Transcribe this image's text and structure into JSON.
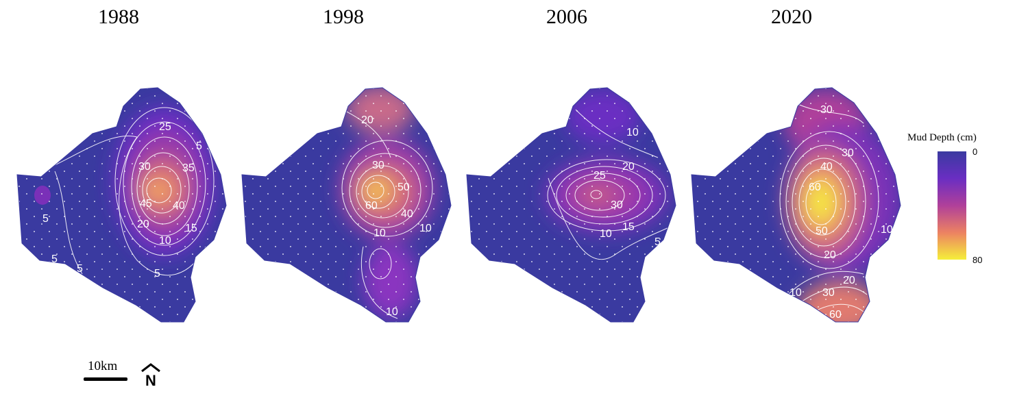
{
  "panels": [
    {
      "year": "1988",
      "labels": [
        "25",
        "5",
        "30",
        "35",
        "45",
        "40",
        "20",
        "15",
        "10",
        "5",
        "5",
        "5",
        "5"
      ]
    },
    {
      "year": "1998",
      "labels": [
        "20",
        "30",
        "50",
        "60",
        "40",
        "10",
        "10",
        "10"
      ]
    },
    {
      "year": "2006",
      "labels": [
        "10",
        "20",
        "25",
        "30",
        "15",
        "10",
        "5"
      ]
    },
    {
      "year": "2020",
      "labels": [
        "30",
        "30",
        "40",
        "60",
        "50",
        "20",
        "10",
        "10",
        "20",
        "30",
        "60"
      ]
    }
  ],
  "legend": {
    "title": "Mud Depth (cm)",
    "min": "0",
    "max": "80",
    "colors": [
      "#3a3aa0",
      "#6a2ec2",
      "#b0409a",
      "#ec8262",
      "#f5ef3b"
    ]
  },
  "scale": {
    "label": "10km"
  },
  "north_arrow": {
    "icon": "north-arrow-icon",
    "letter": "N"
  }
}
